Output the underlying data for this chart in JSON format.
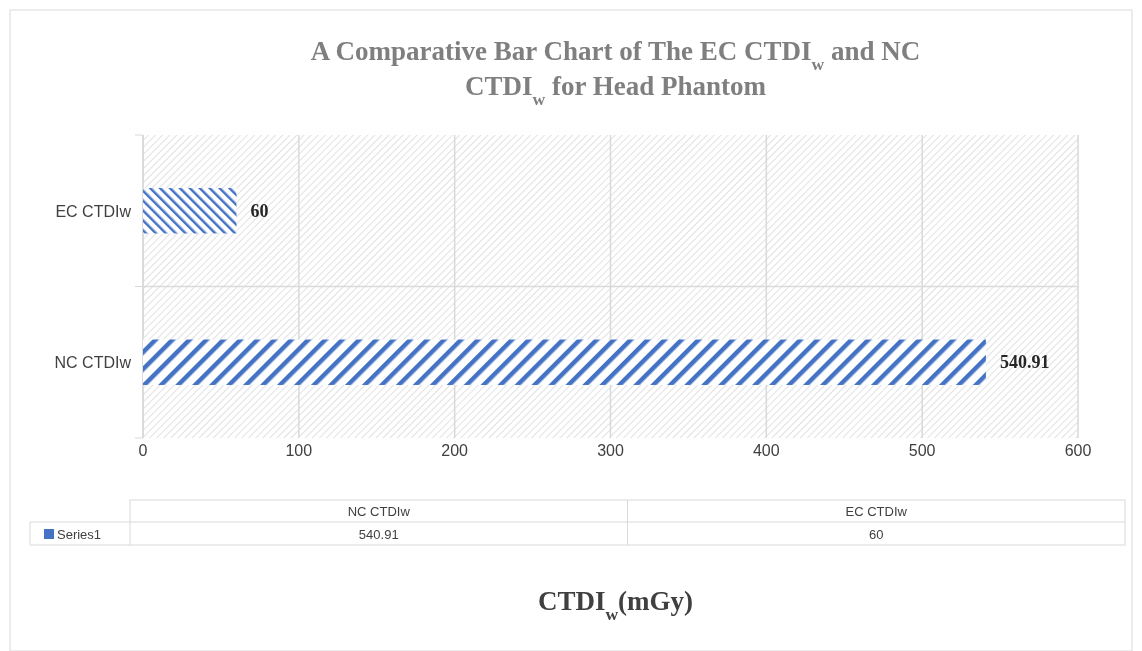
{
  "chart_data": {
    "type": "bar",
    "orientation": "horizontal",
    "title": "A Comparative Bar Chart of The EC CTDI$_{w}$ and NC CTDI$_{w}$ for Head Phantom",
    "xlabel": "CTDI$_{w}$(mGy)",
    "categories": [
      "EC CTDIw",
      "NC CTDIw"
    ],
    "series": [
      {
        "name": "Series1",
        "color": "#4472c4",
        "values": [
          60,
          540.91
        ],
        "value_labels": [
          "60",
          "540.91"
        ]
      }
    ],
    "xlim": [
      0,
      600
    ],
    "xticks": [
      0,
      100,
      200,
      300,
      400,
      500,
      600
    ],
    "grid": "x",
    "data_labels": true,
    "legend": "bottom"
  }
}
